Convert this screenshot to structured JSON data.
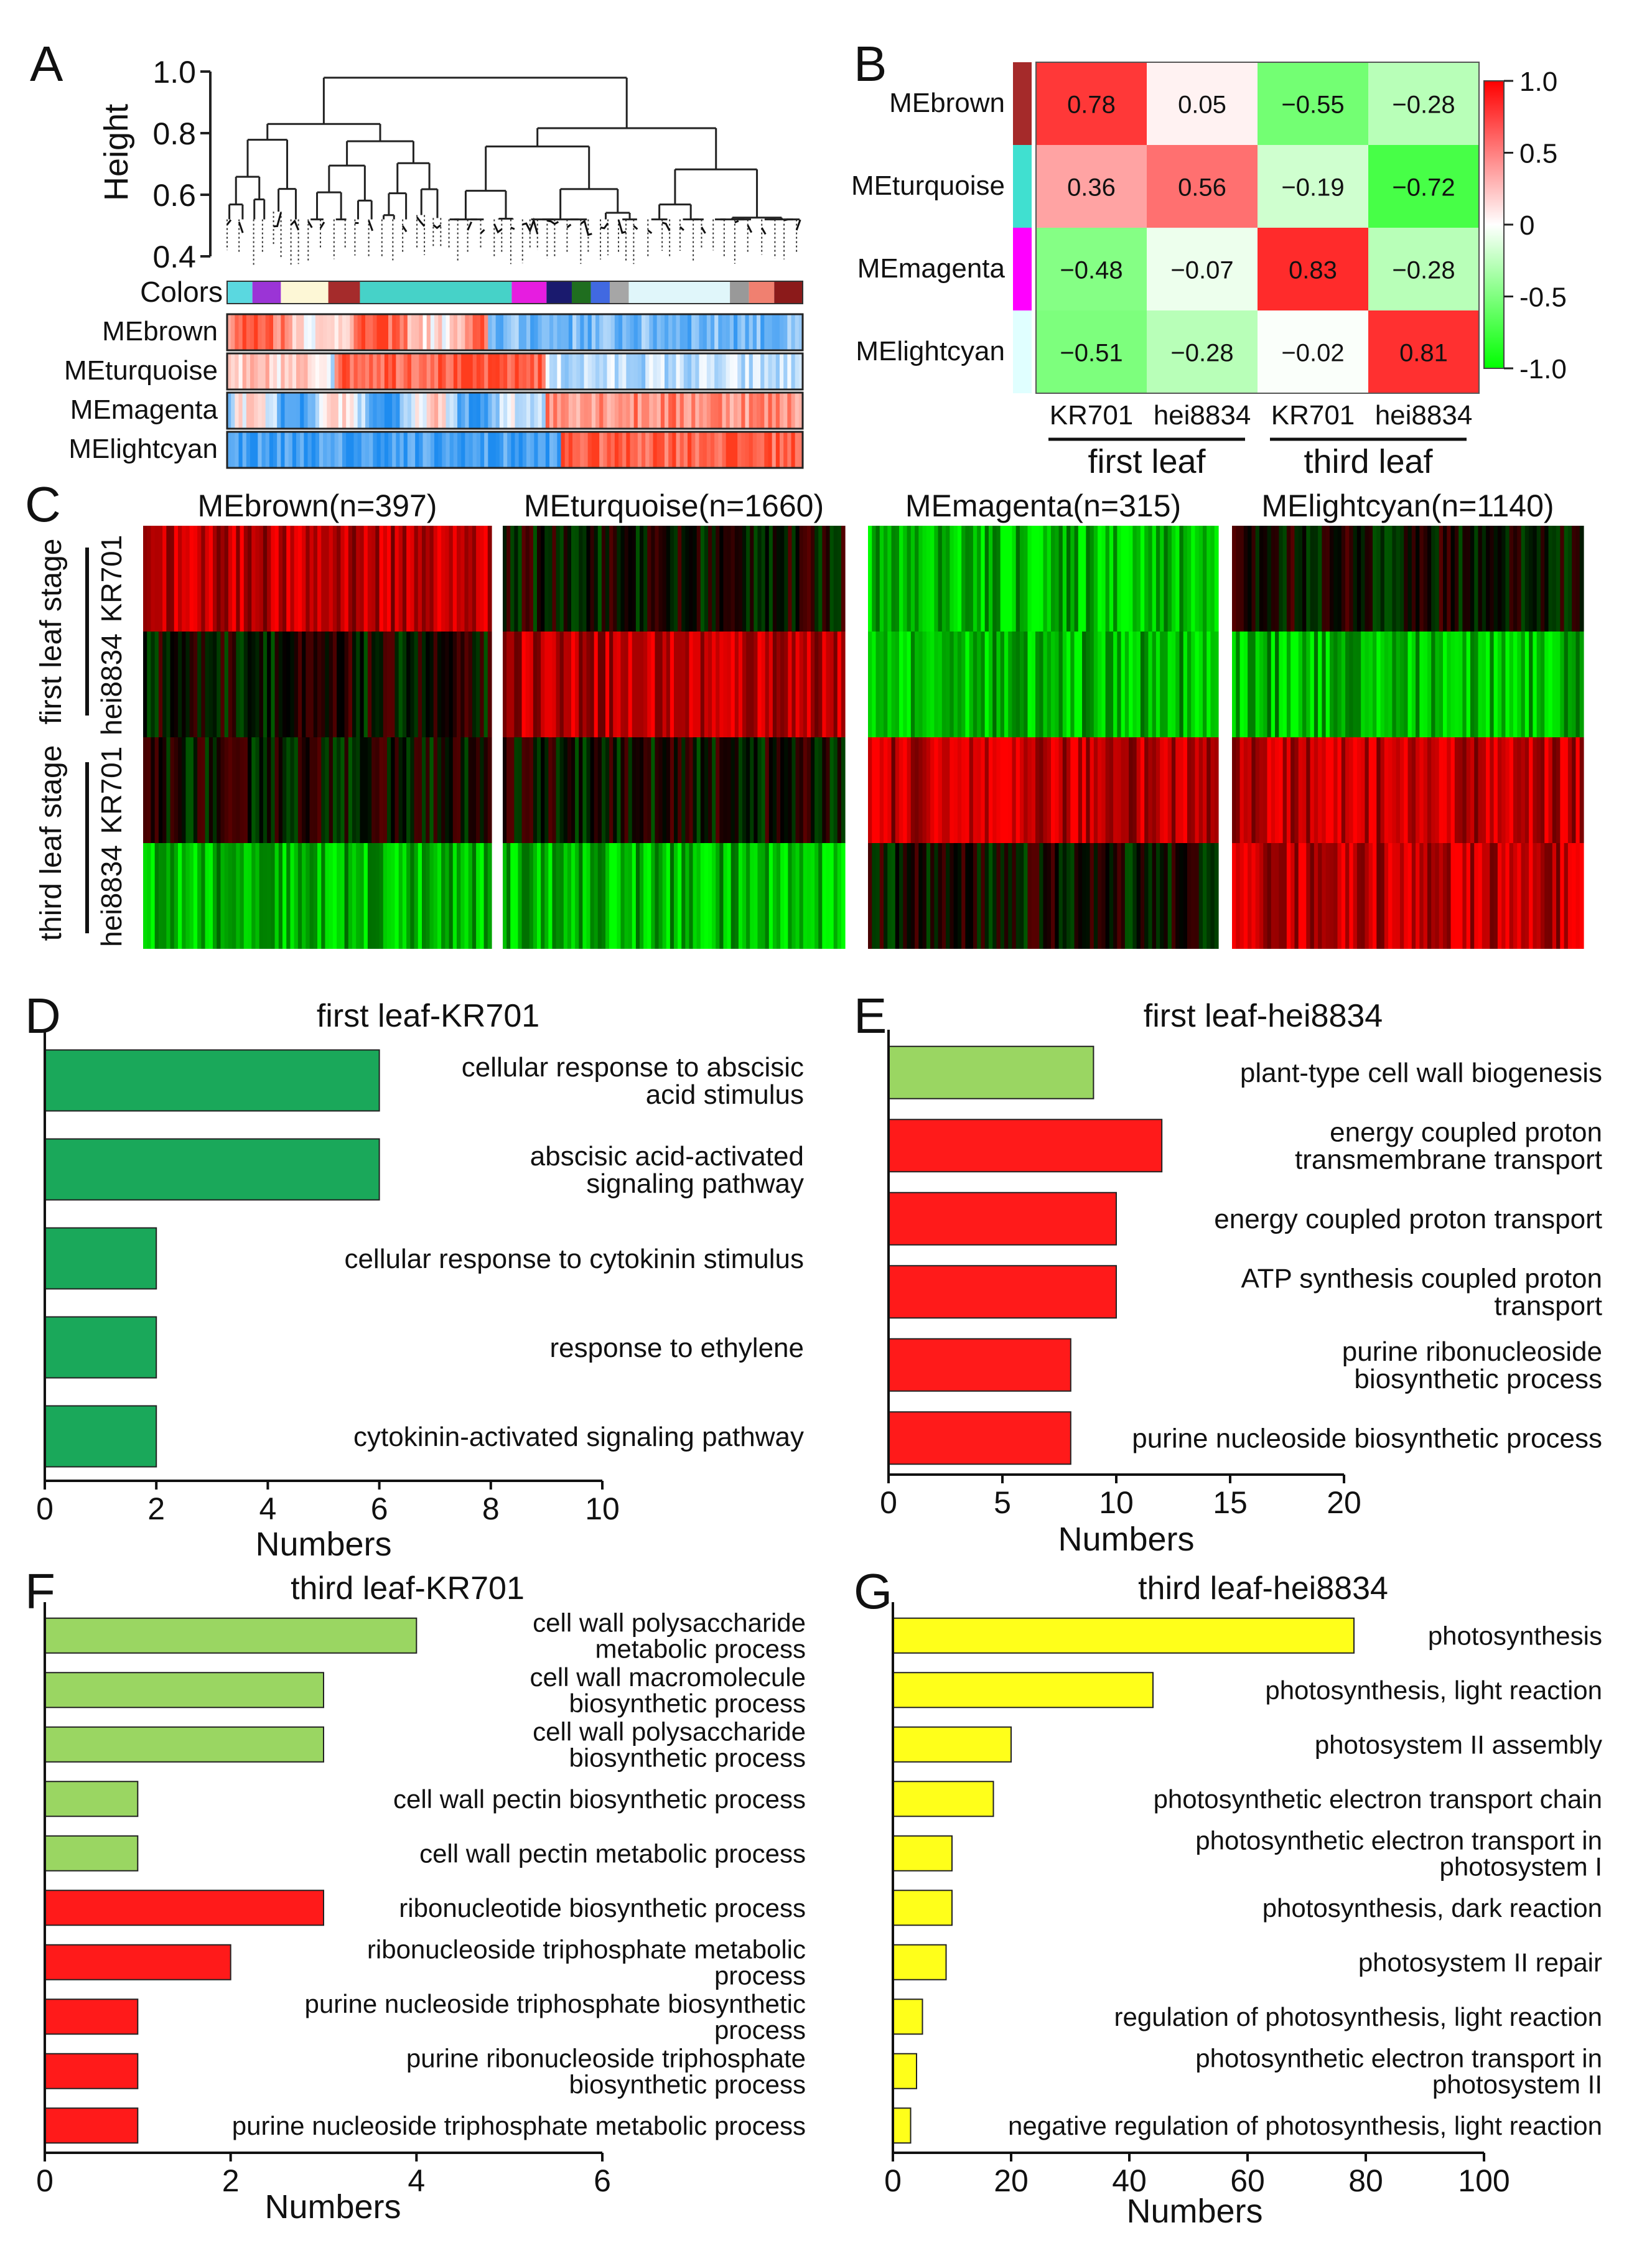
{
  "chart_data": [
    {
      "panel": "A",
      "type": "dendrogram",
      "ylabel": "Height",
      "yticks": [
        1.0,
        0.8,
        0.6,
        0.4
      ],
      "colors_label": "Colors",
      "color_bar": [
        "#5ad8e0",
        "#9b34d6",
        "#fdf7d6",
        "#a52b2b",
        "#46d2c8",
        "#e61de0",
        "#1a1a6e",
        "#1f6e1f",
        "#4169e1",
        "#a6a6a6",
        "#e0f6fa",
        "#999999",
        "#f08070",
        "#8b1a1a"
      ],
      "module_rows": [
        "MEbrown",
        "MEturquoise",
        "MEmagenta",
        "MElightcyan"
      ]
    },
    {
      "panel": "B",
      "type": "heatmap",
      "rows": [
        "MEbrown",
        "MEturquoise",
        "MEmagenta",
        "MElightcyan"
      ],
      "row_colors": [
        "#a52a2a",
        "#40e0d0",
        "#ff00ff",
        "#e0ffff"
      ],
      "columns": [
        "KR701",
        "hei8834",
        "KR701",
        "hei8834"
      ],
      "groups": [
        "first leaf",
        "third leaf"
      ],
      "values": [
        [
          0.78,
          0.05,
          -0.55,
          -0.28
        ],
        [
          0.36,
          0.56,
          -0.19,
          -0.72
        ],
        [
          -0.48,
          -0.07,
          0.83,
          -0.28
        ],
        [
          -0.51,
          -0.28,
          -0.02,
          0.81
        ]
      ],
      "value_labels": [
        [
          "0.78",
          "0.05",
          "−0.55",
          "−0.28"
        ],
        [
          "0.36",
          "0.56",
          "−0.19",
          "−0.72"
        ],
        [
          "−0.48",
          "−0.07",
          "0.83",
          "−0.28"
        ],
        [
          "−0.51",
          "−0.28",
          "−0.02",
          "0.81"
        ]
      ],
      "colorbar_ticks": [
        "1.0",
        "0.5",
        "0",
        "-0.5",
        "-1.0"
      ],
      "colorbar_range": [
        -1.0,
        1.0
      ]
    },
    {
      "panel": "C",
      "type": "heatmap",
      "modules": [
        "MEbrown(n=397)",
        "MEturquoise(n=1660)",
        "MEmagenta(n=315)",
        "MElightcyan(n=1140)"
      ],
      "stages": [
        "first leaf stage",
        "third leaf stage"
      ],
      "lines": [
        "KR701",
        "hei8834"
      ],
      "dominant_value": [
        [
          1,
          0,
          -1,
          0
        ],
        [
          0,
          1,
          -1,
          -1
        ],
        [
          0,
          0,
          1,
          1
        ],
        [
          -1,
          -1,
          0,
          1
        ]
      ]
    },
    {
      "panel": "D",
      "type": "bar",
      "title": "first leaf-KR701",
      "xlabel": "Numbers",
      "xlim": [
        0,
        10
      ],
      "xticks": [
        0,
        2,
        4,
        6,
        8,
        10
      ],
      "categories": [
        [
          "cellular response to abscisic",
          "acid stimulus"
        ],
        [
          "abscisic acid-activated",
          "signaling pathway"
        ],
        [
          "cellular response to cytokinin stimulus"
        ],
        [
          "response to ethylene"
        ],
        [
          "cytokinin-activated signaling pathway"
        ]
      ],
      "values": [
        6,
        6,
        2,
        2,
        2
      ],
      "colors": [
        "#1aa85a",
        "#1aa85a",
        "#1aa85a",
        "#1aa85a",
        "#1aa85a"
      ]
    },
    {
      "panel": "E",
      "type": "bar",
      "title": "first leaf-hei8834",
      "xlabel": "Numbers",
      "xlim": [
        0,
        20
      ],
      "xticks": [
        0,
        5,
        10,
        15,
        20
      ],
      "categories": [
        [
          "plant-type cell wall biogenesis"
        ],
        [
          "energy coupled proton",
          "transmembrane transport"
        ],
        [
          "energy coupled proton transport"
        ],
        [
          "ATP synthesis coupled proton",
          "transport"
        ],
        [
          "purine ribonucleoside",
          "biosynthetic process"
        ],
        [
          "purine nucleoside biosynthetic process"
        ]
      ],
      "values": [
        9,
        12,
        10,
        10,
        8,
        8
      ],
      "colors": [
        "#9ad662",
        "#ff1a1a",
        "#ff1a1a",
        "#ff1a1a",
        "#ff1a1a",
        "#ff1a1a"
      ]
    },
    {
      "panel": "F",
      "type": "bar",
      "title": "third leaf-KR701",
      "xlabel": "Numbers",
      "xlim": [
        0,
        6
      ],
      "xticks": [
        0,
        2,
        4,
        6
      ],
      "categories": [
        [
          "cell wall polysaccharide",
          "metabolic process"
        ],
        [
          "cell wall macromolecule",
          "biosynthetic process"
        ],
        [
          "cell wall polysaccharide",
          "biosynthetic process"
        ],
        [
          "cell wall pectin biosynthetic process"
        ],
        [
          "cell wall pectin metabolic process"
        ],
        [
          "ribonucleotide biosynthetic process"
        ],
        [
          "ribonucleoside triphosphate metabolic",
          "process"
        ],
        [
          "purine nucleoside triphosphate biosynthetic",
          "process"
        ],
        [
          "purine ribonucleoside triphosphate",
          "biosynthetic process"
        ],
        [
          "purine nucleoside triphosphate metabolic process"
        ]
      ],
      "values": [
        4,
        3,
        3,
        1,
        1,
        3,
        2,
        1,
        1,
        1
      ],
      "colors": [
        "#9ad662",
        "#9ad662",
        "#9ad662",
        "#9ad662",
        "#9ad662",
        "#ff1a1a",
        "#ff1a1a",
        "#ff1a1a",
        "#ff1a1a",
        "#ff1a1a"
      ]
    },
    {
      "panel": "G",
      "type": "bar",
      "title": "third leaf-hei8834",
      "xlabel": "Numbers",
      "xlim": [
        0,
        100
      ],
      "xticks": [
        0,
        20,
        40,
        60,
        80,
        100
      ],
      "categories": [
        [
          "photosynthesis"
        ],
        [
          "photosynthesis, light reaction"
        ],
        [
          "photosystem II assembly"
        ],
        [
          "photosynthetic electron transport chain"
        ],
        [
          "photosynthetic electron transport in",
          "photosystem I"
        ],
        [
          "photosynthesis, dark reaction"
        ],
        [
          "photosystem II repair"
        ],
        [
          "regulation of photosynthesis, light reaction"
        ],
        [
          "photosynthetic electron transport in",
          "photosystem II"
        ],
        [
          "negative regulation of photosynthesis, light reaction"
        ]
      ],
      "values": [
        78,
        44,
        20,
        17,
        10,
        10,
        9,
        5,
        4,
        3
      ],
      "colors": [
        "#ffff1a",
        "#ffff1a",
        "#ffff1a",
        "#ffff1a",
        "#ffff1a",
        "#ffff1a",
        "#ffff1a",
        "#ffff1a",
        "#ffff1a",
        "#ffff1a"
      ]
    }
  ]
}
